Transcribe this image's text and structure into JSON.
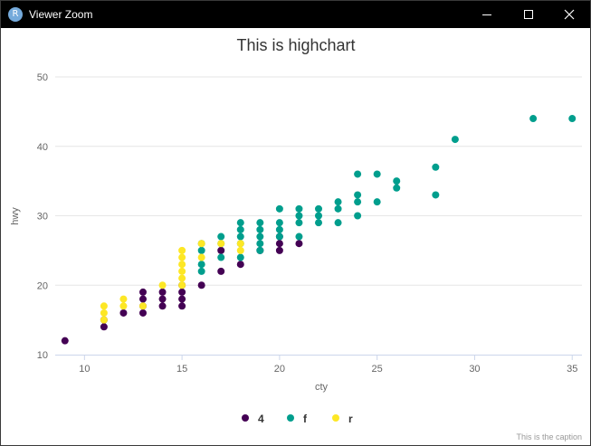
{
  "window": {
    "title": "Viewer Zoom",
    "app_icon_letter": "R"
  },
  "chart": {
    "title": "This is highchart",
    "caption": "This is the caption"
  },
  "chart_data": {
    "type": "scatter",
    "title": "This is highchart",
    "xlabel": "cty",
    "ylabel": "hwy",
    "xlim": [
      8.5,
      35.5
    ],
    "ylim": [
      10,
      50
    ],
    "xticks": [
      10,
      15,
      20,
      25,
      30,
      35
    ],
    "yticks": [
      10,
      20,
      30,
      40,
      50
    ],
    "grid": "horizontal",
    "legend_position": "bottom-center",
    "caption": "This is the caption",
    "series": [
      {
        "name": "4",
        "color": "#440154",
        "points": [
          [
            9,
            12
          ],
          [
            11,
            14
          ],
          [
            11,
            15
          ],
          [
            12,
            16
          ],
          [
            13,
            16
          ],
          [
            13,
            17
          ],
          [
            13,
            18
          ],
          [
            13,
            19
          ],
          [
            14,
            17
          ],
          [
            14,
            18
          ],
          [
            14,
            19
          ],
          [
            15,
            17
          ],
          [
            15,
            18
          ],
          [
            15,
            19
          ],
          [
            15,
            20
          ],
          [
            16,
            20
          ],
          [
            17,
            22
          ],
          [
            17,
            25
          ],
          [
            18,
            23
          ],
          [
            19,
            25
          ],
          [
            20,
            25
          ],
          [
            20,
            26
          ],
          [
            20,
            27
          ],
          [
            21,
            26
          ]
        ]
      },
      {
        "name": "f",
        "color": "#009e8d",
        "points": [
          [
            16,
            22
          ],
          [
            16,
            23
          ],
          [
            16,
            25
          ],
          [
            16,
            26
          ],
          [
            17,
            24
          ],
          [
            17,
            26
          ],
          [
            17,
            27
          ],
          [
            18,
            24
          ],
          [
            18,
            26
          ],
          [
            18,
            27
          ],
          [
            18,
            28
          ],
          [
            18,
            29
          ],
          [
            19,
            25
          ],
          [
            19,
            26
          ],
          [
            19,
            27
          ],
          [
            19,
            28
          ],
          [
            19,
            29
          ],
          [
            20,
            27
          ],
          [
            20,
            28
          ],
          [
            20,
            29
          ],
          [
            20,
            31
          ],
          [
            21,
            27
          ],
          [
            21,
            29
          ],
          [
            21,
            30
          ],
          [
            21,
            31
          ],
          [
            22,
            29
          ],
          [
            22,
            30
          ],
          [
            22,
            31
          ],
          [
            23,
            29
          ],
          [
            23,
            31
          ],
          [
            23,
            32
          ],
          [
            24,
            30
          ],
          [
            24,
            32
          ],
          [
            24,
            33
          ],
          [
            24,
            36
          ],
          [
            25,
            32
          ],
          [
            25,
            36
          ],
          [
            26,
            34
          ],
          [
            26,
            35
          ],
          [
            28,
            33
          ],
          [
            28,
            37
          ],
          [
            29,
            41
          ],
          [
            33,
            44
          ],
          [
            35,
            44
          ]
        ]
      },
      {
        "name": "r",
        "color": "#fde725",
        "points": [
          [
            11,
            15
          ],
          [
            11,
            16
          ],
          [
            11,
            17
          ],
          [
            12,
            17
          ],
          [
            12,
            18
          ],
          [
            13,
            17
          ],
          [
            14,
            20
          ],
          [
            15,
            20
          ],
          [
            15,
            21
          ],
          [
            15,
            22
          ],
          [
            15,
            23
          ],
          [
            15,
            24
          ],
          [
            15,
            25
          ],
          [
            16,
            24
          ],
          [
            16,
            26
          ],
          [
            17,
            26
          ],
          [
            18,
            25
          ],
          [
            18,
            26
          ]
        ]
      }
    ]
  }
}
